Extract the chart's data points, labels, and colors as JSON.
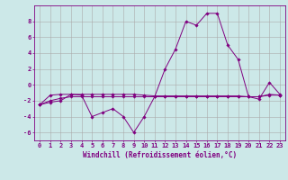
{
  "xlabel": "Windchill (Refroidissement éolien,°C)",
  "x": [
    0,
    1,
    2,
    3,
    4,
    5,
    6,
    7,
    8,
    9,
    10,
    11,
    12,
    13,
    14,
    15,
    16,
    17,
    18,
    19,
    20,
    21,
    22,
    23
  ],
  "y_main": [
    -2.5,
    -2.2,
    -2.0,
    -1.2,
    -1.3,
    -4.0,
    -3.5,
    -3.0,
    -4.0,
    -6.0,
    -4.0,
    -1.5,
    2.0,
    4.5,
    8.0,
    7.5,
    9.0,
    9.0,
    5.0,
    3.2,
    -1.5,
    -1.8,
    0.3,
    -1.2
  ],
  "y_line1": [
    -2.5,
    -1.3,
    -1.2,
    -1.2,
    -1.2,
    -1.2,
    -1.2,
    -1.2,
    -1.2,
    -1.2,
    -1.3,
    -1.4,
    -1.4,
    -1.4,
    -1.4,
    -1.4,
    -1.4,
    -1.4,
    -1.4,
    -1.4,
    -1.5,
    -1.5,
    -1.2,
    -1.3
  ],
  "y_line2": [
    -2.5,
    -2.0,
    -1.7,
    -1.5,
    -1.5,
    -1.5,
    -1.5,
    -1.5,
    -1.5,
    -1.5,
    -1.5,
    -1.5,
    -1.5,
    -1.5,
    -1.5,
    -1.5,
    -1.5,
    -1.5,
    -1.5,
    -1.5,
    -1.5,
    -1.5,
    -1.3,
    -1.3
  ],
  "line_color": "#800080",
  "bg_color": "#cce8e8",
  "grid_color": "#aaaaaa",
  "ylim": [
    -7,
    10
  ],
  "yticks": [
    -6,
    -4,
    -2,
    0,
    2,
    4,
    6,
    8
  ],
  "xticks": [
    0,
    1,
    2,
    3,
    4,
    5,
    6,
    7,
    8,
    9,
    10,
    11,
    12,
    13,
    14,
    15,
    16,
    17,
    18,
    19,
    20,
    21,
    22,
    23
  ],
  "tick_fontsize": 5.0,
  "xlabel_fontsize": 5.5
}
